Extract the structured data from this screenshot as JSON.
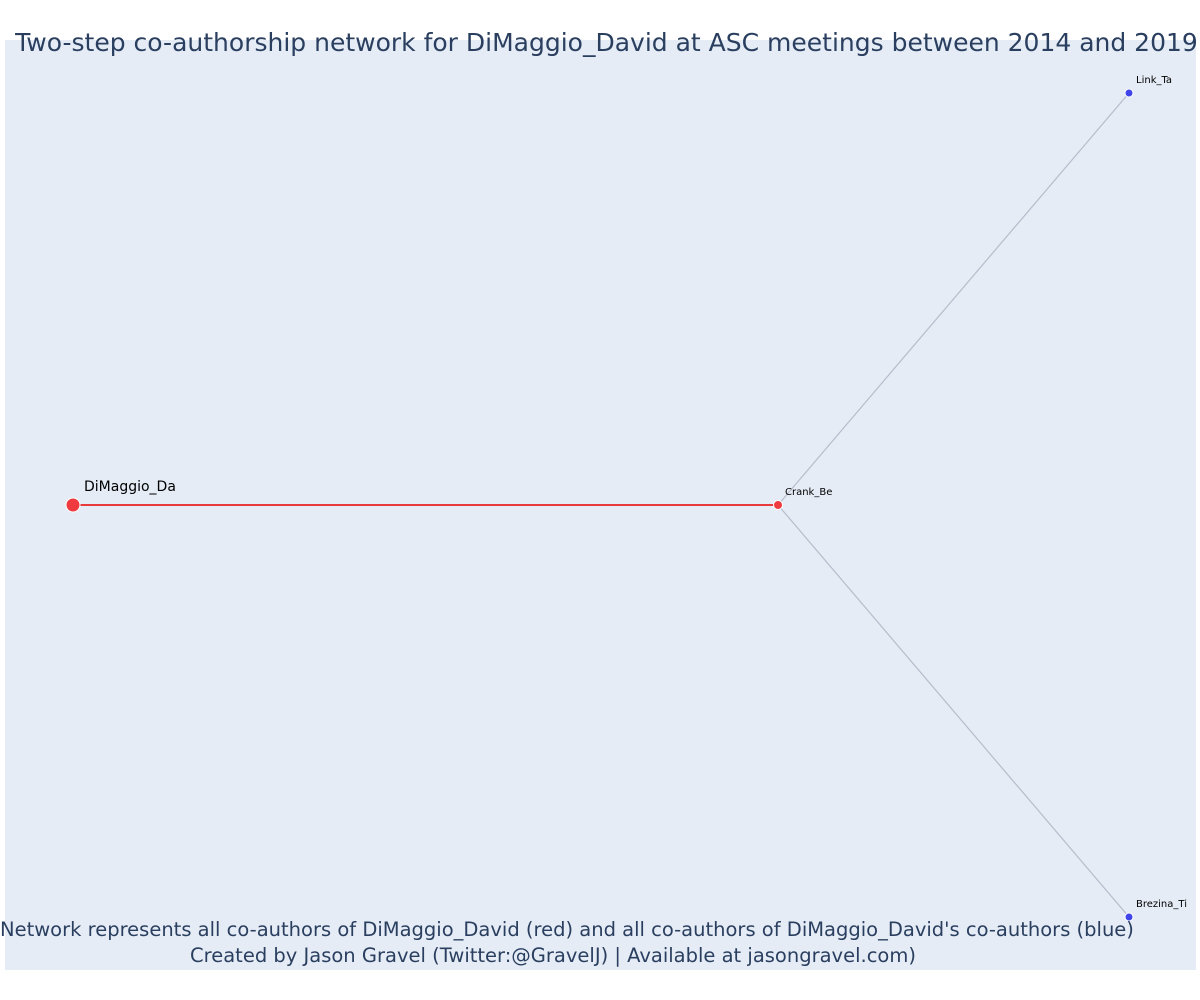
{
  "title": "Two-step co-authorship network for DiMaggio_David at ASC meetings between 2014 and 2019",
  "footer": {
    "line1": "Network represents all co-authors of DiMaggio_David (red) and all co-authors of DiMaggio_David's co-authors (blue)",
    "line2": "Created by Jason Gravel (Twitter:@GravelJ) | Available at jasongravel.com)"
  },
  "colors": {
    "background": "#e5ecf6",
    "focal_node": "#ef3b3f",
    "first_step_node": "#ef3b3f",
    "second_step_node": "#3f45e8",
    "focal_edge": "#e8393d",
    "other_edge": "#b7bccb",
    "title_text": "#2a3f5f"
  },
  "network": {
    "nodes": [
      {
        "id": "DiMaggio_Da",
        "label": "DiMaggio_Da",
        "role": "focal"
      },
      {
        "id": "Crank_Be",
        "label": "Crank_Be",
        "role": "first_step"
      },
      {
        "id": "Link_Ta",
        "label": "Link_Ta",
        "role": "second_step"
      },
      {
        "id": "Brezina_Ti",
        "label": "Brezina_Ti",
        "role": "second_step"
      }
    ],
    "edges": [
      {
        "source": "DiMaggio_Da",
        "target": "Crank_Be",
        "type": "focal"
      },
      {
        "source": "Crank_Be",
        "target": "Link_Ta",
        "type": "other"
      },
      {
        "source": "Crank_Be",
        "target": "Brezina_Ti",
        "type": "other"
      }
    ]
  }
}
